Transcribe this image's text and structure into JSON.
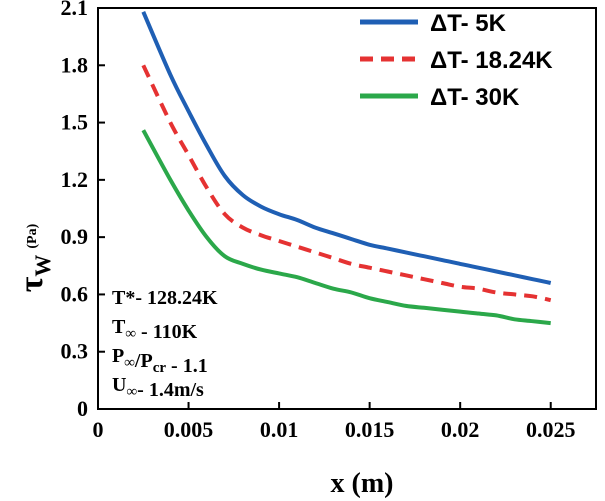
{
  "chart_data": {
    "type": "line",
    "xlabel": "x (m)",
    "ylabel_main": "τ",
    "ylabel_sub": "W",
    "ylabel_unit": "(Pa)",
    "xlim": [
      0,
      0.0275
    ],
    "ylim": [
      0,
      2.1
    ],
    "xticks": [
      0,
      0.005,
      0.01,
      0.015,
      0.02,
      0.025
    ],
    "xtick_labels": [
      "0",
      "0.005",
      "0.01",
      "0.015",
      "0.02",
      "0.025"
    ],
    "yticks": [
      0,
      0.3,
      0.6,
      0.9,
      1.2,
      1.5,
      1.8,
      2.1
    ],
    "ytick_labels": [
      "0",
      "0.3",
      "0.6",
      "0.9",
      "1.2",
      "1.5",
      "1.8",
      "2.1"
    ],
    "legend_position": "top-right",
    "series": [
      {
        "name": "ΔT- 5K",
        "color": "#1f5fb4",
        "dash": "solid",
        "x": [
          0.0025,
          0.004,
          0.005,
          0.006,
          0.007,
          0.008,
          0.009,
          0.01,
          0.011,
          0.012,
          0.013,
          0.014,
          0.015,
          0.016,
          0.017,
          0.018,
          0.019,
          0.02,
          0.021,
          0.022,
          0.023,
          0.024,
          0.025
        ],
        "y": [
          2.08,
          1.75,
          1.56,
          1.38,
          1.22,
          1.12,
          1.06,
          1.02,
          0.99,
          0.95,
          0.92,
          0.89,
          0.86,
          0.84,
          0.82,
          0.8,
          0.78,
          0.76,
          0.74,
          0.72,
          0.7,
          0.68,
          0.66
        ]
      },
      {
        "name": "ΔT- 18.24K",
        "color": "#e53232",
        "dash": "dashed",
        "x": [
          0.0025,
          0.004,
          0.005,
          0.006,
          0.007,
          0.008,
          0.009,
          0.01,
          0.011,
          0.012,
          0.013,
          0.014,
          0.015,
          0.016,
          0.017,
          0.018,
          0.019,
          0.02,
          0.021,
          0.022,
          0.023,
          0.024,
          0.025
        ],
        "y": [
          1.8,
          1.5,
          1.33,
          1.16,
          1.02,
          0.95,
          0.91,
          0.88,
          0.85,
          0.82,
          0.79,
          0.76,
          0.74,
          0.72,
          0.7,
          0.68,
          0.66,
          0.64,
          0.63,
          0.61,
          0.6,
          0.59,
          0.57
        ]
      },
      {
        "name": "ΔT- 30K",
        "color": "#2ba84a",
        "dash": "solid",
        "x": [
          0.0025,
          0.004,
          0.005,
          0.006,
          0.007,
          0.008,
          0.009,
          0.01,
          0.011,
          0.012,
          0.013,
          0.014,
          0.015,
          0.016,
          0.017,
          0.018,
          0.019,
          0.02,
          0.021,
          0.022,
          0.023,
          0.024,
          0.025
        ],
        "y": [
          1.46,
          1.2,
          1.04,
          0.9,
          0.8,
          0.76,
          0.73,
          0.71,
          0.69,
          0.66,
          0.63,
          0.61,
          0.58,
          0.56,
          0.54,
          0.53,
          0.52,
          0.51,
          0.5,
          0.49,
          0.47,
          0.46,
          0.45
        ]
      }
    ],
    "annotations": [
      {
        "main": "T*",
        "sub": "",
        "rest": "- 128.24K"
      },
      {
        "main": "T",
        "sub": "∞",
        "rest": " - 110K"
      },
      {
        "main": "P",
        "sub": "∞",
        "mid": "/P",
        "sub2": "cr",
        "rest": " - 1.1"
      },
      {
        "main": "U",
        "sub": "∞",
        "rest": "- 1.4m/s"
      }
    ]
  }
}
